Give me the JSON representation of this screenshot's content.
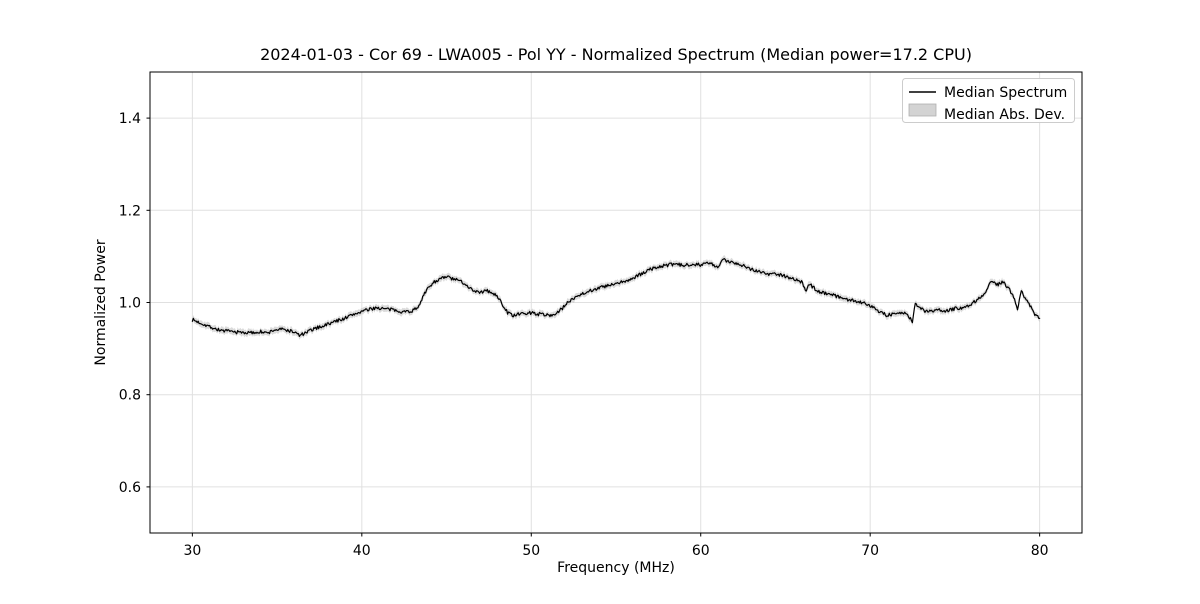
{
  "title": "2024-01-03 - Cor 69 - LWA005 - Pol YY - Normalized Spectrum (Median power=17.2 CPU)",
  "chart_data": {
    "type": "line",
    "title": "2024-01-03 - Cor 69 - LWA005 - Pol YY - Normalized Spectrum (Median power=17.2 CPU)",
    "xlabel": "Frequency (MHz)",
    "ylabel": "Normalized Power",
    "xlim": [
      27.5,
      82.5
    ],
    "ylim": [
      0.5,
      1.5
    ],
    "xticks": [
      30,
      40,
      50,
      60,
      70,
      80
    ],
    "xtick_labels": [
      "30",
      "40",
      "50",
      "60",
      "70",
      "80"
    ],
    "yticks": [
      0.6,
      0.8,
      1.0,
      1.2,
      1.4
    ],
    "ytick_labels": [
      "0.6",
      "0.8",
      "1.0",
      "1.2",
      "1.4"
    ],
    "grid": true,
    "grid_color": "#e0e0e0",
    "spine_color": "#000000",
    "legend": {
      "position": "upper right",
      "border_color": "#cccccc",
      "entries": [
        {
          "label": "Median Spectrum",
          "type": "line",
          "color": "#000000"
        },
        {
          "label": "Median Abs. Dev.",
          "type": "patch",
          "color": "#d3d3d3"
        }
      ]
    },
    "series": [
      {
        "name": "Median Spectrum",
        "color": "#000000",
        "x": [
          30.0,
          30.3,
          30.6,
          31.0,
          31.5,
          32.0,
          32.5,
          33.0,
          33.5,
          34.0,
          34.4,
          34.8,
          35.2,
          35.6,
          36.0,
          36.3,
          36.6,
          37.0,
          37.5,
          38.0,
          38.5,
          39.0,
          39.5,
          40.0,
          40.5,
          40.8,
          41.2,
          41.6,
          42.0,
          42.5,
          43.0,
          43.3,
          43.6,
          44.0,
          44.4,
          44.8,
          45.1,
          45.4,
          45.8,
          46.2,
          46.5,
          46.8,
          47.1,
          47.4,
          47.7,
          48.0,
          48.3,
          48.6,
          48.9,
          49.2,
          49.6,
          50.0,
          50.4,
          50.8,
          51.2,
          51.6,
          52.0,
          52.4,
          52.8,
          53.2,
          53.6,
          54.0,
          54.5,
          55.0,
          55.5,
          56.0,
          56.5,
          57.0,
          57.5,
          58.0,
          58.5,
          59.0,
          59.5,
          60.0,
          60.5,
          61.0,
          61.3,
          61.6,
          62.0,
          62.4,
          62.8,
          63.2,
          63.6,
          64.0,
          64.4,
          64.8,
          65.2,
          65.6,
          66.0,
          66.2,
          66.4,
          66.7,
          67.0,
          67.5,
          68.0,
          68.5,
          69.0,
          69.5,
          70.0,
          70.5,
          71.0,
          71.5,
          72.0,
          72.3,
          72.5,
          72.65,
          72.9,
          73.2,
          73.6,
          74.0,
          74.4,
          74.8,
          75.2,
          75.6,
          76.0,
          76.4,
          76.8,
          77.0,
          77.2,
          77.5,
          77.8,
          78.1,
          78.4,
          78.7,
          78.9,
          79.1,
          79.4,
          79.7,
          80.0
        ],
        "y": [
          0.963,
          0.958,
          0.954,
          0.948,
          0.941,
          0.938,
          0.936,
          0.935,
          0.934,
          0.937,
          0.933,
          0.94,
          0.942,
          0.94,
          0.936,
          0.929,
          0.932,
          0.94,
          0.947,
          0.953,
          0.96,
          0.966,
          0.974,
          0.981,
          0.985,
          0.989,
          0.987,
          0.985,
          0.983,
          0.98,
          0.982,
          0.99,
          1.012,
          1.036,
          1.048,
          1.053,
          1.056,
          1.05,
          1.047,
          1.038,
          1.028,
          1.024,
          1.022,
          1.026,
          1.019,
          1.014,
          0.996,
          0.978,
          0.972,
          0.974,
          0.976,
          0.978,
          0.975,
          0.974,
          0.972,
          0.979,
          0.994,
          1.008,
          1.016,
          1.022,
          1.027,
          1.032,
          1.036,
          1.04,
          1.046,
          1.052,
          1.062,
          1.072,
          1.077,
          1.081,
          1.083,
          1.08,
          1.084,
          1.082,
          1.086,
          1.075,
          1.093,
          1.089,
          1.087,
          1.082,
          1.075,
          1.07,
          1.066,
          1.061,
          1.063,
          1.059,
          1.055,
          1.049,
          1.044,
          1.022,
          1.04,
          1.031,
          1.023,
          1.02,
          1.014,
          1.008,
          1.004,
          1.0,
          0.994,
          0.982,
          0.972,
          0.976,
          0.978,
          0.968,
          0.959,
          1.0,
          0.988,
          0.982,
          0.98,
          0.984,
          0.981,
          0.985,
          0.988,
          0.99,
          0.998,
          1.008,
          1.022,
          1.04,
          1.046,
          1.038,
          1.044,
          1.035,
          1.016,
          0.987,
          1.026,
          1.01,
          0.995,
          0.976,
          0.968
        ]
      }
    ],
    "band": {
      "name": "Median Abs. Dev.",
      "color": "#bdbdbd",
      "opacity": 0.55,
      "half_width": 0.0055,
      "half_width_jitter": 0.0025
    },
    "noise_amplitude": 0.0038,
    "x_range_of_data": [
      30.0,
      80.0
    ]
  }
}
